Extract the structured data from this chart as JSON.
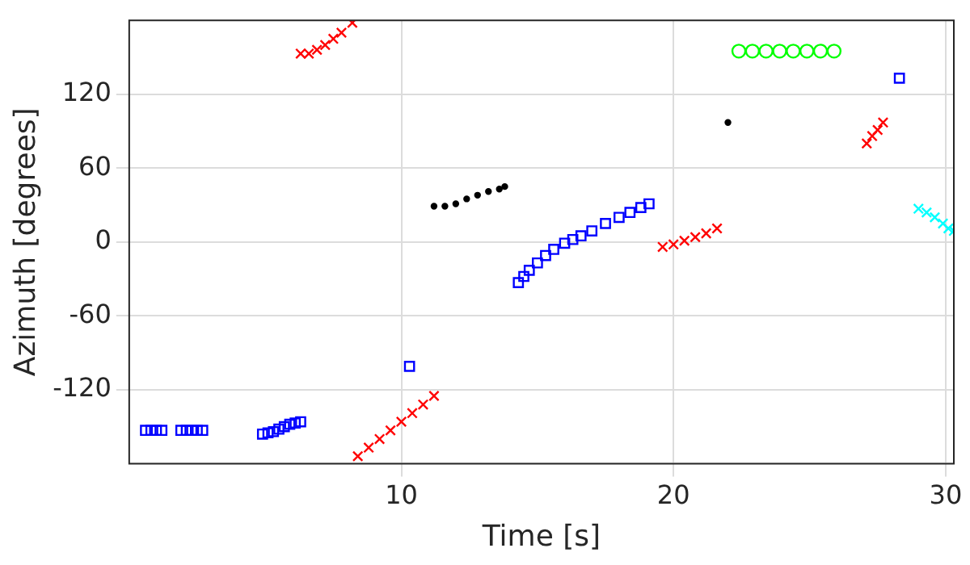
{
  "chart_data": {
    "type": "scatter",
    "xlabel": "Time [s]",
    "ylabel": "Azimuth [degrees]",
    "xlim": [
      0,
      30.3
    ],
    "xticks": [
      10,
      20,
      30
    ],
    "ylim": [
      -180,
      180
    ],
    "yticks": [
      -120,
      -60,
      0,
      60,
      120
    ],
    "grid": true,
    "legend": false,
    "series": [
      {
        "color": "#0000ff",
        "marker": "square",
        "x": [
          0.6,
          0.8,
          1.0,
          1.2,
          1.9,
          2.1,
          2.3,
          2.5,
          2.7,
          4.9,
          5.1,
          5.3,
          5.5,
          5.7,
          5.9,
          6.1,
          6.3,
          10.3,
          14.3,
          14.5,
          14.7,
          15.0,
          15.3,
          15.6,
          16.0,
          16.3,
          16.6,
          17.0,
          17.5,
          18.0,
          18.4,
          18.8,
          19.1,
          28.3
        ],
        "values": [
          -153,
          -153,
          -153,
          -153,
          -153,
          -153,
          -153,
          -153,
          -153,
          -156,
          -155,
          -154,
          -152,
          -150,
          -148,
          -147,
          -146,
          -101,
          -33,
          -28,
          -23,
          -17,
          -11,
          -6,
          -1,
          2,
          5,
          9,
          15,
          20,
          24,
          28,
          31,
          133
        ]
      },
      {
        "color": "#ff0000",
        "marker": "cross",
        "x": [
          6.3,
          6.6,
          6.9,
          7.2,
          7.5,
          7.8,
          8.2,
          8.4,
          8.8,
          9.2,
          9.6,
          10.0,
          10.4,
          10.8,
          11.2,
          19.6,
          20.0,
          20.4,
          20.8,
          21.2,
          21.6,
          27.1,
          27.3,
          27.5,
          27.7
        ],
        "values": [
          153,
          153,
          156,
          160,
          165,
          170,
          178,
          -174,
          -167,
          -160,
          -153,
          -146,
          -139,
          -132,
          -125,
          -4,
          -2,
          1,
          4,
          7,
          11,
          80,
          86,
          91,
          97
        ]
      },
      {
        "color": "#000000",
        "marker": "circle",
        "x": [
          11.2,
          11.6,
          12.0,
          12.4,
          12.8,
          13.2,
          13.6,
          13.8,
          22.0
        ],
        "values": [
          29,
          29,
          31,
          35,
          38,
          41,
          43,
          45,
          97
        ]
      },
      {
        "color": "#00ff00",
        "marker": "circle",
        "x": [
          22.4,
          22.9,
          23.4,
          23.9,
          24.4,
          24.9,
          25.4,
          25.9
        ],
        "values": [
          155,
          155,
          155,
          155,
          155,
          155,
          155,
          155
        ]
      },
      {
        "color": "#00ffff",
        "marker": "cross",
        "x": [
          29.0,
          29.3,
          29.6,
          29.9,
          30.1,
          30.3
        ],
        "values": [
          27,
          24,
          20,
          15,
          11,
          9
        ]
      }
    ]
  }
}
